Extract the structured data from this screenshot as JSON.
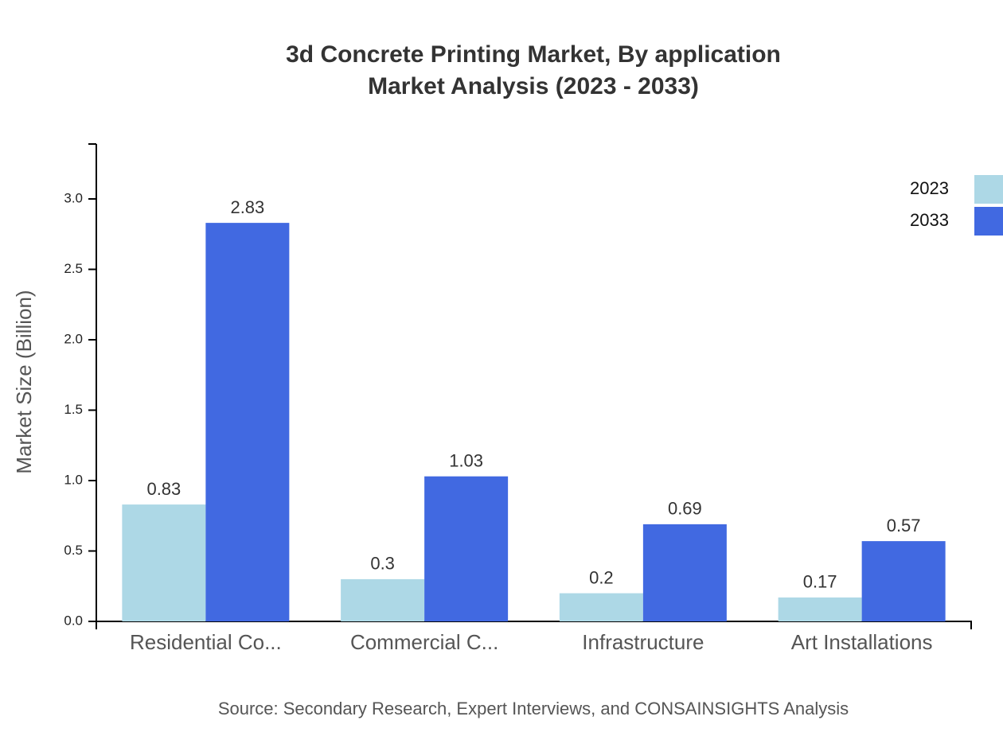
{
  "chart_data": {
    "type": "bar",
    "title": "3d Concrete Printing Market, By application",
    "subtitle": "Market Analysis (2023 - 2033)",
    "y_label": "Market Size (Billion)",
    "source": "Source: Secondary Research, Expert Interviews, and CONSAINSIGHTS Analysis",
    "categories": [
      "Residential Co...",
      "Commercial C...",
      "Infrastructure",
      "Art Installations"
    ],
    "series": [
      {
        "name": "2023",
        "color": "#add8e6",
        "values": [
          0.83,
          0.3,
          0.2,
          0.17
        ]
      },
      {
        "name": "2033",
        "color": "#4169e1",
        "values": [
          2.83,
          1.03,
          0.69,
          0.57
        ]
      }
    ],
    "ylim": [
      0,
      3.39
    ],
    "yticks": [
      {
        "value": 0,
        "label": "0.0"
      },
      0.5,
      {
        "value": 1,
        "label": "1.0"
      },
      1.5,
      {
        "value": 2,
        "label": "2.0"
      },
      2.5,
      {
        "value": 3,
        "label": "3.0"
      }
    ],
    "grid": false,
    "legend": "top-right"
  }
}
